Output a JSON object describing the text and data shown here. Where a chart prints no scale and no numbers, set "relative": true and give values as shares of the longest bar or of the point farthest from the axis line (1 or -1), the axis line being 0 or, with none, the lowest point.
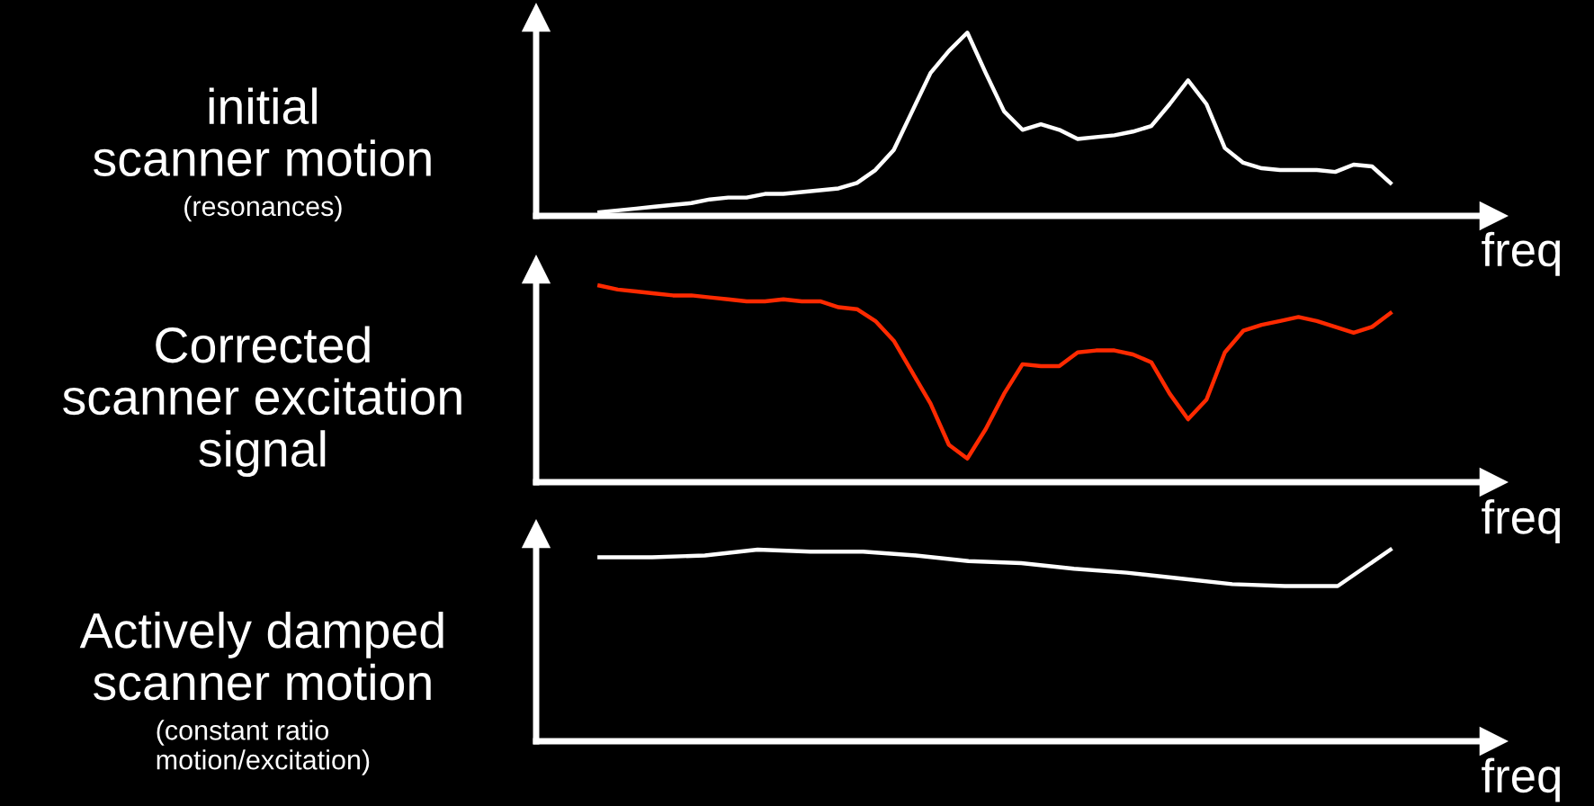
{
  "chart_data": [
    {
      "type": "line",
      "title": "initial\nscanner motion",
      "annotations": [
        "(resonances)"
      ],
      "xlabel": "freq",
      "relative": true,
      "grid": false,
      "legend": false,
      "categories": [
        null,
        null,
        null,
        null,
        null,
        null,
        null,
        null,
        null,
        null,
        null,
        null,
        null,
        null,
        null,
        null,
        null,
        null,
        null,
        null,
        null,
        null,
        null,
        null,
        null,
        null,
        null,
        null,
        null,
        null,
        null,
        null,
        null,
        null,
        null,
        null,
        null,
        null,
        null,
        null,
        null,
        null,
        null,
        null
      ],
      "series": [
        {
          "color": "#ffffff",
          "values": [
            0.02,
            0.03,
            0.04,
            0.05,
            0.06,
            0.07,
            0.09,
            0.1,
            0.1,
            0.12,
            0.12,
            0.13,
            0.14,
            0.15,
            0.18,
            0.25,
            0.36,
            0.57,
            0.78,
            0.9,
            1,
            0.78,
            0.57,
            0.47,
            0.5,
            0.47,
            0.42,
            0.43,
            0.44,
            0.46,
            0.49,
            0.61,
            0.74,
            0.61,
            0.37,
            0.29,
            0.26,
            0.25,
            0.25,
            0.25,
            0.24,
            0.28,
            0.27,
            0.18
          ]
        }
      ]
    },
    {
      "type": "line",
      "title": "Corrected\nscanner excitation\nsignal",
      "xlabel": "freq",
      "relative": true,
      "grid": false,
      "legend": false,
      "categories": [
        null,
        null,
        null,
        null,
        null,
        null,
        null,
        null,
        null,
        null,
        null,
        null,
        null,
        null,
        null,
        null,
        null,
        null,
        null,
        null,
        null,
        null,
        null,
        null,
        null,
        null,
        null,
        null,
        null,
        null,
        null,
        null,
        null,
        null,
        null,
        null,
        null,
        null,
        null,
        null,
        null,
        null,
        null,
        null
      ],
      "series": [
        {
          "color": "#ff2a00",
          "values": [
            1,
            0.98,
            0.97,
            0.96,
            0.95,
            0.95,
            0.94,
            0.93,
            0.92,
            0.92,
            0.93,
            0.92,
            0.92,
            0.89,
            0.88,
            0.82,
            0.72,
            0.56,
            0.4,
            0.19,
            0.12,
            0.27,
            0.45,
            0.6,
            0.59,
            0.59,
            0.66,
            0.67,
            0.67,
            0.65,
            0.61,
            0.45,
            0.32,
            0.42,
            0.66,
            0.77,
            0.8,
            0.82,
            0.84,
            0.82,
            0.79,
            0.76,
            0.79,
            0.86
          ]
        }
      ]
    },
    {
      "type": "line",
      "title": "Actively damped\nscanner motion",
      "annotations": [
        "(constant ratio\nmotion/excitation)"
      ],
      "xlabel": "freq",
      "relative": true,
      "grid": false,
      "legend": false,
      "categories": [
        null,
        null,
        null,
        null,
        null,
        null,
        null,
        null,
        null,
        null,
        null,
        null,
        null,
        null,
        null,
        null
      ],
      "series": [
        {
          "color": "#ffffff",
          "values": [
            0.96,
            0.96,
            0.97,
            1,
            0.99,
            0.99,
            0.97,
            0.94,
            0.93,
            0.9,
            0.88,
            0.85,
            0.82,
            0.81,
            0.81,
            1
          ]
        }
      ]
    }
  ]
}
